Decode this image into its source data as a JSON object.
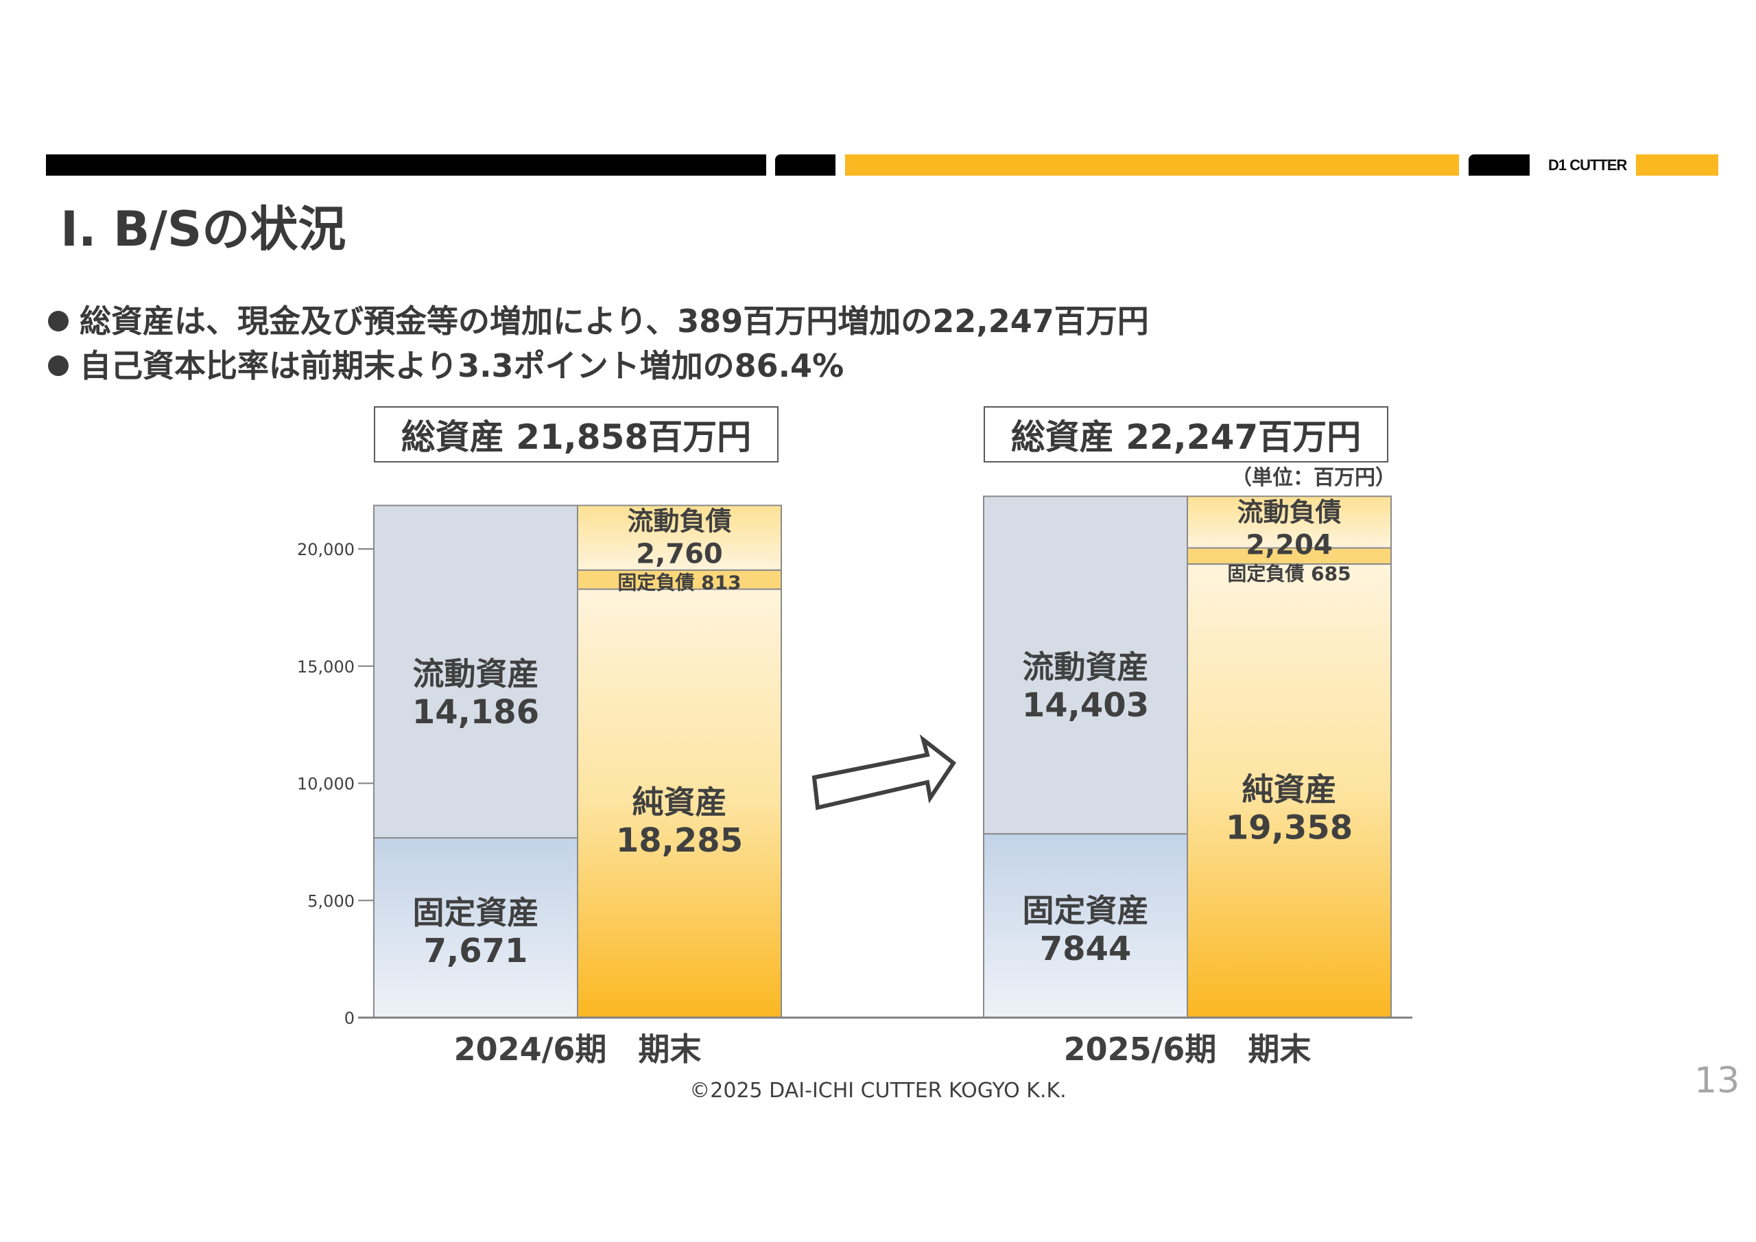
{
  "header": {
    "logo_text": "D1 CUTTER",
    "colors": {
      "black": "#000000",
      "accent": "#FBB820"
    }
  },
  "title": "Ⅰ. B/Sの状況",
  "bullets": [
    "総資産は、現金及び預金等の増加により、389百万円増加の22,247百万円",
    "自己資本比率は前期末より3.3ポイント増加の86.4%"
  ],
  "totals": [
    "総資産 21,858百万円",
    "総資産 22,247百万円"
  ],
  "unit_label": "（単位：百万円）",
  "chart_data": {
    "type": "bar",
    "stacked": true,
    "ylim": [
      0,
      22247
    ],
    "yticks": [
      0,
      5000,
      10000,
      15000,
      20000
    ],
    "ytick_labels": [
      "0",
      "5,000",
      "10,000",
      "15,000",
      "20,000"
    ],
    "categories": [
      "2024/6期　期末",
      "2025/6期　期末"
    ],
    "groups": [
      {
        "assets": [
          {
            "name": "固定資産",
            "value": 7671,
            "label": "7,671"
          },
          {
            "name": "流動資産",
            "value": 14186,
            "label": "14,186"
          }
        ],
        "liabilities_equity": [
          {
            "name": "純資産",
            "value": 18285,
            "label": "18,285"
          },
          {
            "name": "固定負債",
            "value": 813,
            "label": "813"
          },
          {
            "name": "流動負債",
            "value": 2760,
            "label": "2,760"
          }
        ]
      },
      {
        "assets": [
          {
            "name": "固定資産",
            "value": 7844,
            "label": "7844"
          },
          {
            "name": "流動資産",
            "value": 14403,
            "label": "14,403"
          }
        ],
        "liabilities_equity": [
          {
            "name": "純資産",
            "value": 19358,
            "label": "19,358"
          },
          {
            "name": "固定負債",
            "value": 685,
            "label": "685"
          },
          {
            "name": "流動負債",
            "value": 2204,
            "label": "2,204"
          }
        ]
      }
    ]
  },
  "footer": {
    "copyright": "©2025 DAI-ICHI CUTTER KOGYO K.K.",
    "page_number": "13"
  }
}
